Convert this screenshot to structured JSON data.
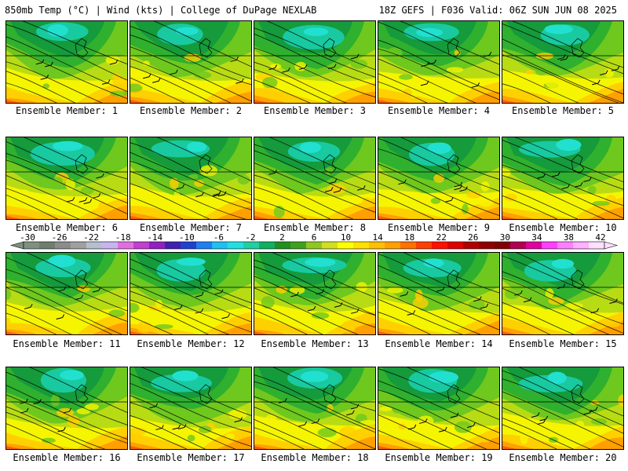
{
  "header": {
    "left": "850mb Temp (°C) | Wind (kts) | College of DuPage NEXLAB",
    "right": "18Z GEFS | F036 Valid: 06Z SUN JUN 08 2025"
  },
  "members": [
    {
      "label": "Ensemble Member: 1"
    },
    {
      "label": "Ensemble Member: 2"
    },
    {
      "label": "Ensemble Member: 3"
    },
    {
      "label": "Ensemble Member: 4"
    },
    {
      "label": "Ensemble Member: 5"
    },
    {
      "label": "Ensemble Member: 6"
    },
    {
      "label": "Ensemble Member: 7"
    },
    {
      "label": "Ensemble Member: 8"
    },
    {
      "label": "Ensemble Member: 9"
    },
    {
      "label": "Ensemble Member: 10"
    },
    {
      "label": "Ensemble Member: 11"
    },
    {
      "label": "Ensemble Member: 12"
    },
    {
      "label": "Ensemble Member: 13"
    },
    {
      "label": "Ensemble Member: 14"
    },
    {
      "label": "Ensemble Member: 15"
    },
    {
      "label": "Ensemble Member: 16"
    },
    {
      "label": "Ensemble Member: 17"
    },
    {
      "label": "Ensemble Member: 18"
    },
    {
      "label": "Ensemble Member: 19"
    },
    {
      "label": "Ensemble Member: 20"
    }
  ],
  "colorbar": {
    "ticks": [
      "-30",
      "-26",
      "-22",
      "-18",
      "-14",
      "-10",
      "-6",
      "-2",
      "2",
      "6",
      "10",
      "14",
      "18",
      "22",
      "26",
      "30",
      "34",
      "38",
      "42"
    ],
    "colors": [
      "#7f9080",
      "#6e7f70",
      "#8c8c8c",
      "#a0a0a0",
      "#b4c0d0",
      "#c8b4f0",
      "#e070e0",
      "#c040d0",
      "#9020c0",
      "#4020b0",
      "#2040d0",
      "#2080f0",
      "#20c0f0",
      "#20e0e0",
      "#20d0a0",
      "#10b060",
      "#209020",
      "#40a020",
      "#90c820",
      "#d0e020",
      "#ffff00",
      "#ffe000",
      "#ffc000",
      "#ffa000",
      "#ff7000",
      "#ff4000",
      "#ff1000",
      "#e00000",
      "#b00000",
      "#900000",
      "#800000",
      "#b00050",
      "#e000a0",
      "#ff40ff",
      "#ff80ff",
      "#ffb0ff",
      "#ffe0ff"
    ]
  },
  "fill_palette": {
    "deep_green": "#159a3c",
    "teal": "#19c9a0",
    "cyan": "#22e0d0",
    "mid_green": "#2fb02f",
    "light_green": "#6ec81e",
    "yellow_green": "#b8dc14",
    "yellow": "#f5f500",
    "gold": "#ffd000",
    "orange": "#ffa000",
    "red_orange": "#ff6010"
  }
}
